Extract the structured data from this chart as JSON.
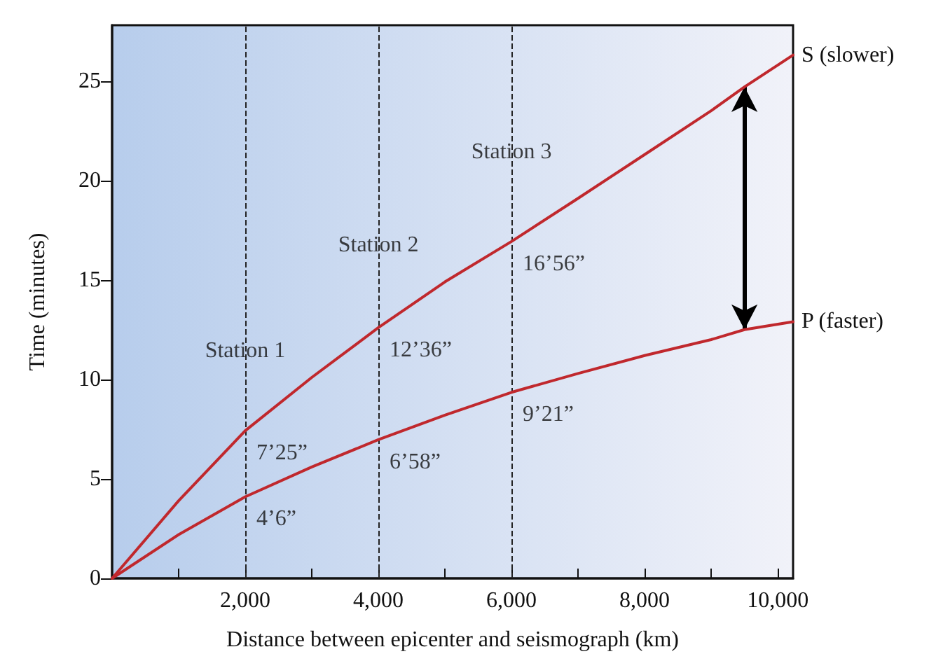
{
  "chart_data": {
    "type": "line",
    "xlabel": "Distance between epicenter and seismograph (km)",
    "ylabel": "Time (minutes)",
    "x": [
      0,
      1000,
      2000,
      3000,
      4000,
      5000,
      6000,
      7000,
      8000,
      9000,
      9500,
      10230
    ],
    "series": [
      {
        "name": "S (slower)",
        "color": "#c0282d",
        "values": [
          0,
          3.9,
          7.42,
          10.1,
          12.6,
          14.9,
          16.93,
          19.1,
          21.3,
          23.5,
          24.7,
          26.3
        ]
      },
      {
        "name": "P (faster)",
        "color": "#c0282d",
        "values": [
          0,
          2.2,
          4.1,
          5.6,
          6.97,
          8.2,
          9.35,
          10.3,
          11.2,
          12.0,
          12.5,
          12.9
        ]
      }
    ],
    "xlim": [
      0,
      10230
    ],
    "ylim": [
      0,
      27.8
    ],
    "xticks": [
      {
        "value": 1000,
        "label": null
      },
      {
        "value": 2000,
        "label": "2,000"
      },
      {
        "value": 3000,
        "label": null
      },
      {
        "value": 4000,
        "label": "4,000"
      },
      {
        "value": 5000,
        "label": null
      },
      {
        "value": 6000,
        "label": "6,000"
      },
      {
        "value": 7000,
        "label": null
      },
      {
        "value": 8000,
        "label": "8,000"
      },
      {
        "value": 9000,
        "label": null
      },
      {
        "value": 10000,
        "label": "10,000"
      }
    ],
    "yticks": [
      0,
      5,
      10,
      15,
      20,
      25
    ],
    "ref_lines": [
      {
        "axis": "x",
        "value": 2000,
        "label": null,
        "line_style": "dashed",
        "color": "#222222"
      },
      {
        "axis": "x",
        "value": 4000,
        "label": null,
        "line_style": "dashed",
        "color": "#222222"
      },
      {
        "axis": "x",
        "value": 6000,
        "label": null,
        "line_style": "dashed",
        "color": "#222222"
      }
    ],
    "annotations": [
      {
        "text": "Station 1",
        "x": 2000,
        "y": 10.6
      },
      {
        "text": "Station 2",
        "x": 4000,
        "y": 15.9
      },
      {
        "text": "Station 3",
        "x": 6000,
        "y": 20.6
      },
      {
        "text": "7’25”",
        "x": 2000,
        "y": 7.42
      },
      {
        "text": "4’6”",
        "x": 2000,
        "y": 4.1
      },
      {
        "text": "12’36”",
        "x": 4000,
        "y": 12.6
      },
      {
        "text": "6’58”",
        "x": 4000,
        "y": 6.97
      },
      {
        "text": "16’56”",
        "x": 6000,
        "y": 16.93
      },
      {
        "text": "9’21”",
        "x": 6000,
        "y": 9.35
      }
    ],
    "grid": false,
    "marker": "none",
    "line_style": "solid",
    "legend": false
  }
}
